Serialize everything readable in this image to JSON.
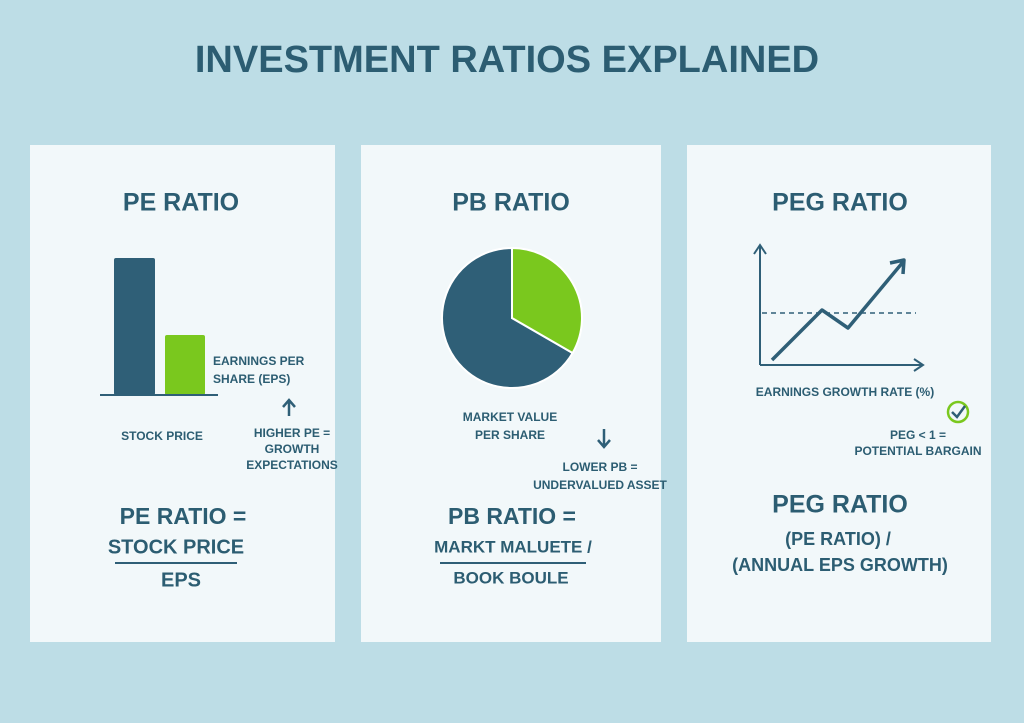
{
  "title": "INVESTMENT RATIOS EXPLAINED",
  "cards": [
    {
      "title": "PE RATIO",
      "eps_label": [
        "EARNINGS PER",
        "SHARE (EPS)"
      ],
      "price_label": "STOCK PRICE",
      "note": [
        "HIGHER PE =",
        "GROWTH",
        "EXPECTATIONS"
      ],
      "formula": {
        "head": "PE RATIO =",
        "numerator": "STOCK PRICE",
        "denominator": "EPS"
      }
    },
    {
      "title": "PB RATIO",
      "pie_label": [
        "MARKET VALUE",
        "PER SHARE"
      ],
      "note": [
        "LOWER PB =",
        "UNDERVALUED ASSET"
      ],
      "formula": {
        "head": "PB RATIO =",
        "numerator": "MARKT MALUETE /",
        "denominator": "BOOK BOULE"
      }
    },
    {
      "title": "PEG RATIO",
      "axis_label": "EARNINGS GROWTH RATE (%)",
      "note": [
        "PEG < 1 =",
        "POTENTIAL BARGAIN"
      ],
      "formula": {
        "head": "PEG RATIO",
        "numerator": "(PE RATIO) /",
        "denominator": "(ANNUAL EPS GROWTH)"
      }
    }
  ]
}
